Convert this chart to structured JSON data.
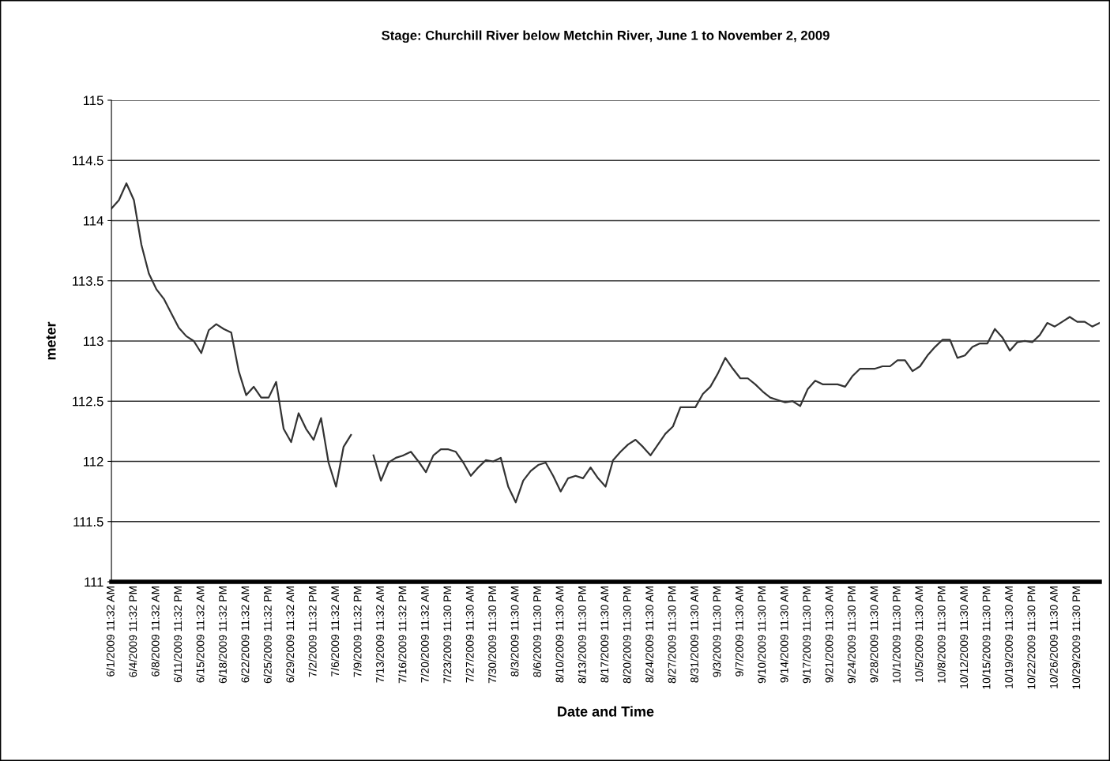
{
  "chart_data": {
    "type": "line",
    "title": "Stage: Churchill River below Metchin River, June 1 to November 2, 2009",
    "xlabel": "Date and Time",
    "ylabel": "meter",
    "categories": [
      "6/1/2009 11:32 AM",
      null,
      null,
      "6/4/2009 11:32 PM",
      null,
      null,
      "6/8/2009 11:32 AM",
      null,
      null,
      "6/11/2009 11:32 PM",
      null,
      null,
      "6/15/2009 11:32 AM",
      null,
      null,
      "6/18/2009 11:32 PM",
      null,
      null,
      "6/22/2009 11:32 AM",
      null,
      null,
      "6/25/2009 11:32 PM",
      null,
      null,
      "6/29/2009 11:32 AM",
      null,
      null,
      "7/2/2009 11:32 PM",
      null,
      null,
      "7/6/2009 11:32 AM",
      null,
      null,
      "7/9/2009 11:32 PM",
      null,
      null,
      "7/13/2009 11:32 AM",
      null,
      null,
      "7/16/2009 11:32 PM",
      null,
      null,
      "7/20/2009 11:32 AM",
      null,
      null,
      "7/23/2009 11:30 PM",
      null,
      null,
      "7/27/2009 11:30 AM",
      null,
      null,
      "7/30/2009 11:30 PM",
      null,
      null,
      "8/3/2009 11:30 AM",
      null,
      null,
      "8/6/2009 11:30 PM",
      null,
      null,
      "8/10/2009 11:30 AM",
      null,
      null,
      "8/13/2009 11:30 PM",
      null,
      null,
      "8/17/2009 11:30 AM",
      null,
      null,
      "8/20/2009 11:30 PM",
      null,
      null,
      "8/24/2009 11:30 AM",
      null,
      null,
      "8/27/2009 11:30 PM",
      null,
      null,
      "8/31/2009 11:30 AM",
      null,
      null,
      "9/3/2009 11:30 PM",
      null,
      null,
      "9/7/2009 11:30 AM",
      null,
      null,
      "9/10/2009 11:30 PM",
      null,
      null,
      "9/14/2009 11:30 AM",
      null,
      null,
      "9/17/2009 11:30 PM",
      null,
      null,
      "9/21/2009 11:30 AM",
      null,
      null,
      "9/24/2009 11:30 PM",
      null,
      null,
      "9/28/2009 11:30 AM",
      null,
      null,
      "10/1/2009 11:30 PM",
      null,
      null,
      "10/5/2009 11:30 AM",
      null,
      null,
      "10/8/2009 11:30 PM",
      null,
      null,
      "10/12/2009 11:30 AM",
      null,
      null,
      "10/15/2009 11:30 PM",
      null,
      null,
      "10/19/2009 11:30 AM",
      null,
      null,
      "10/22/2009 11:30 PM",
      null,
      null,
      "10/26/2009 11:30 AM",
      null,
      null,
      "10/29/2009 11:30 PM",
      null,
      null,
      null
    ],
    "series": [
      {
        "color": "#333333",
        "values": [
          114.1,
          114.17,
          114.31,
          114.17,
          113.8,
          113.56,
          113.43,
          113.35,
          113.23,
          113.11,
          113.04,
          113.0,
          112.9,
          113.09,
          113.14,
          113.1,
          113.07,
          112.75,
          112.55,
          112.62,
          112.53,
          112.53,
          112.66,
          112.27,
          112.16,
          112.4,
          112.27,
          112.18,
          112.36,
          111.99,
          111.79,
          112.12,
          112.22,
          null,
          null,
          112.05,
          111.84,
          111.99,
          112.03,
          112.05,
          112.08,
          112.0,
          111.91,
          112.05,
          112.1,
          112.1,
          112.08,
          111.99,
          111.88,
          111.95,
          112.01,
          112.0,
          112.03,
          111.79,
          111.66,
          111.84,
          111.92,
          111.97,
          111.99,
          111.88,
          111.75,
          111.86,
          111.88,
          111.86,
          111.95,
          111.86,
          111.79,
          112.01,
          112.08,
          112.14,
          112.18,
          112.12,
          112.05,
          112.14,
          112.23,
          112.29,
          112.45,
          112.45,
          112.45,
          112.56,
          112.62,
          112.73,
          112.86,
          112.77,
          112.69,
          112.69,
          112.64,
          112.58,
          112.53,
          112.51,
          112.49,
          112.5,
          112.46,
          112.6,
          112.67,
          112.64,
          112.64,
          112.64,
          112.62,
          112.71,
          112.77,
          112.77,
          112.77,
          112.79,
          112.79,
          112.84,
          112.84,
          112.75,
          112.79,
          112.88,
          112.95,
          113.01,
          113.01,
          112.86,
          112.88,
          112.95,
          112.98,
          112.98,
          113.1,
          113.03,
          112.92,
          112.99,
          113.0,
          112.99,
          113.05,
          113.15,
          113.12,
          113.16,
          113.2,
          113.16,
          113.16,
          113.12,
          113.15
        ]
      }
    ],
    "ylim": [
      111,
      115
    ],
    "yticks": [
      111,
      111.5,
      112,
      112.5,
      113,
      113.5,
      114,
      114.5,
      115
    ],
    "grid": "y",
    "legend": false,
    "marker": "none",
    "line_style": "solid"
  }
}
